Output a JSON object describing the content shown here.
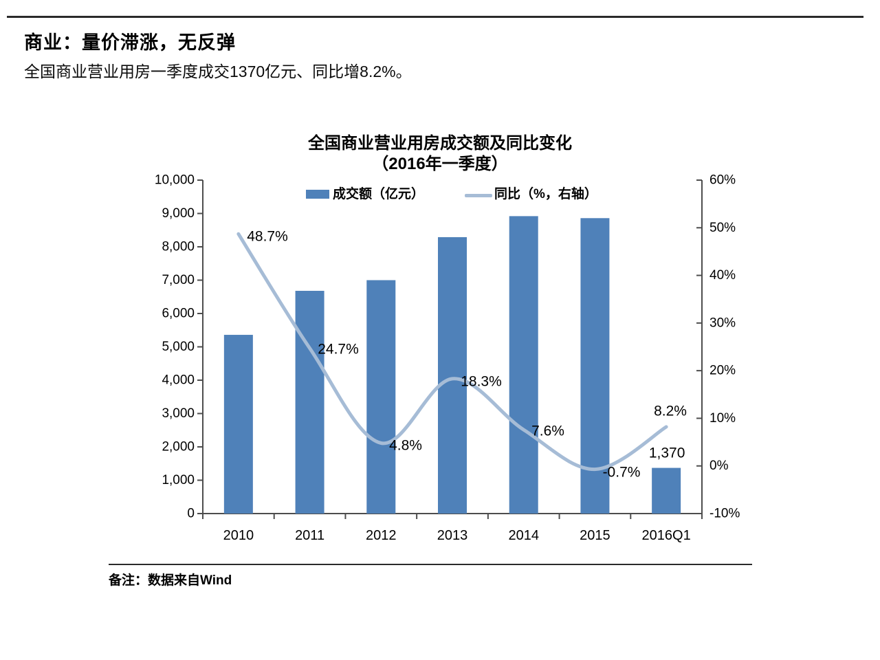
{
  "header": {
    "title": "商业：量价滞涨，无反弹",
    "subtitle": "全国商业营业用房一季度成交1370亿元、同比增8.2%。"
  },
  "footer": {
    "note": "备注：数据来自Wind"
  },
  "chart_data": {
    "type": "bar",
    "title_line1": "全国商业营业用房成交额及同比变化",
    "title_line2": "（2016年一季度）",
    "categories": [
      "2010",
      "2011",
      "2012",
      "2013",
      "2014",
      "2015",
      "2016Q1"
    ],
    "series": [
      {
        "name": "成交额（亿元）",
        "type": "bar",
        "axis": "left",
        "values": [
          5360,
          6680,
          7000,
          8290,
          8920,
          8860,
          1370
        ],
        "color": "#4f81b9"
      },
      {
        "name": "同比（%，右轴）",
        "type": "line",
        "axis": "right",
        "values": [
          48.7,
          24.7,
          4.8,
          18.3,
          7.6,
          -0.7,
          8.2
        ],
        "color": "#a6bcd6"
      }
    ],
    "point_labels": [
      "48.7%",
      "24.7%",
      "4.8%",
      "18.3%",
      "7.6%",
      "-0.7%",
      "8.2%"
    ],
    "bar_value_label": {
      "category": "2016Q1",
      "text": "1,370"
    },
    "left_axis": {
      "min": 0,
      "max": 10000,
      "step": 1000,
      "tick_labels": [
        "0",
        "1,000",
        "2,000",
        "3,000",
        "4,000",
        "5,000",
        "6,000",
        "7,000",
        "8,000",
        "9,000",
        "10,000"
      ]
    },
    "right_axis": {
      "min": -10,
      "max": 60,
      "step": 10,
      "tick_labels": [
        "-10%",
        "0%",
        "10%",
        "20%",
        "30%",
        "40%",
        "50%",
        "60%"
      ]
    },
    "grid": "off",
    "legend_position": "top-inside",
    "axis_color": "#4d4d4d",
    "label_color": "#000000"
  }
}
